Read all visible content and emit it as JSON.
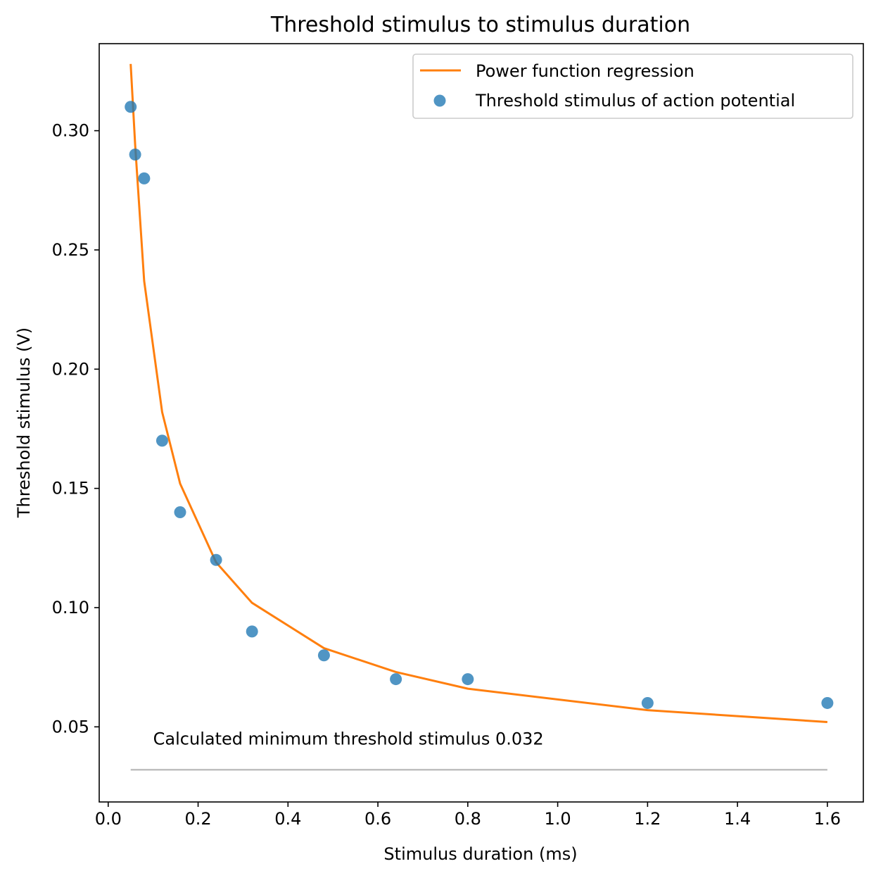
{
  "chart_data": {
    "type": "scatter",
    "title": "Threshold stimulus to stimulus duration",
    "xlabel": "Stimulus duration (ms)",
    "ylabel": "Threshold stimulus (V)",
    "xlim": [
      -0.02,
      1.68
    ],
    "ylim": [
      0.0185,
      0.3365
    ],
    "xticks": [
      0.0,
      0.2,
      0.4,
      0.6,
      0.8,
      1.0,
      1.2,
      1.4,
      1.6
    ],
    "xtick_labels": [
      "0.0",
      "0.2",
      "0.4",
      "0.6",
      "0.8",
      "1.0",
      "1.2",
      "1.4",
      "1.6"
    ],
    "yticks": [
      0.05,
      0.1,
      0.15,
      0.2,
      0.25,
      0.3
    ],
    "ytick_labels": [
      "0.05",
      "0.10",
      "0.15",
      "0.20",
      "0.25",
      "0.30"
    ],
    "grid": false,
    "legend_position": "top-right",
    "series": [
      {
        "name": "Power function regression",
        "kind": "line",
        "color": "#ff7f0e",
        "x": [
          0.05,
          0.06,
          0.08,
          0.12,
          0.16,
          0.24,
          0.32,
          0.48,
          0.64,
          0.8,
          1.2,
          1.6
        ],
        "y": [
          0.328,
          0.294,
          0.237,
          0.182,
          0.152,
          0.119,
          0.102,
          0.083,
          0.073,
          0.066,
          0.057,
          0.052
        ]
      },
      {
        "name": "Threshold stimulus of action potential",
        "kind": "scatter",
        "color": "#1f77b4",
        "x": [
          0.05,
          0.06,
          0.08,
          0.12,
          0.16,
          0.24,
          0.32,
          0.48,
          0.64,
          0.8,
          1.2,
          1.6
        ],
        "y": [
          0.31,
          0.29,
          0.28,
          0.17,
          0.14,
          0.12,
          0.09,
          0.08,
          0.07,
          0.07,
          0.06,
          0.06
        ]
      }
    ],
    "reference_line": {
      "y": 0.032,
      "x": [
        0.05,
        1.6
      ],
      "color": "#bfbfbf"
    },
    "annotation": {
      "text": "Calculated minimum threshold stimulus 0.032",
      "x": 0.1,
      "y": 0.0425
    }
  }
}
